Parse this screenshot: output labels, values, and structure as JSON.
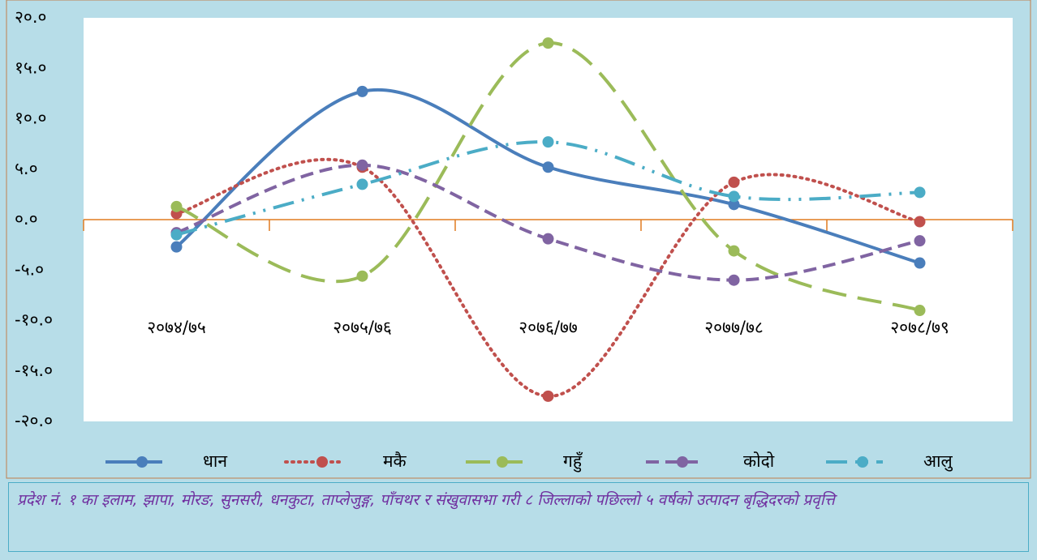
{
  "chart_data": {
    "type": "line",
    "categories": [
      "२०७४/७५",
      "२०७५/७६",
      "२०७६/७७",
      "२०७७/७८",
      "२०७८/७९"
    ],
    "series": [
      {
        "name": "धान",
        "color": "#4a7ebb",
        "line_style": "solid",
        "values": [
          -2.7,
          12.7,
          5.2,
          1.5,
          -4.3
        ]
      },
      {
        "name": "मकै",
        "color": "#c0504d",
        "line_style": "dotted",
        "values": [
          0.6,
          5.2,
          -17.5,
          3.7,
          -0.2
        ]
      },
      {
        "name": "गहुँ",
        "color": "#9bbb59",
        "line_style": "long-dash",
        "values": [
          1.3,
          -5.6,
          17.5,
          -3.1,
          -9.0
        ]
      },
      {
        "name": "कोदो",
        "color": "#8064a2",
        "line_style": "dash",
        "values": [
          -1.3,
          5.4,
          -1.9,
          -6.0,
          -2.1
        ]
      },
      {
        "name": "आलु",
        "color": "#4bacc6",
        "line_style": "dash-dot-dot",
        "values": [
          -1.5,
          3.5,
          7.7,
          2.3,
          2.7
        ]
      }
    ],
    "ylim": [
      -20,
      20
    ],
    "yticks": [
      {
        "value": -20,
        "label": "-२०.०"
      },
      {
        "value": -15,
        "label": "-१५.०"
      },
      {
        "value": -10,
        "label": "-१०.०"
      },
      {
        "value": -5,
        "label": "-५.०"
      },
      {
        "value": 0,
        "label": "०.०"
      },
      {
        "value": 5,
        "label": "५.०"
      },
      {
        "value": 10,
        "label": "१०.०"
      },
      {
        "value": 15,
        "label": "१५.०"
      },
      {
        "value": 20,
        "label": "२०.०"
      }
    ],
    "caption": "प्रदेश नं. १ का इलाम, झापा, मोरङ, सुनसरी, धनकुटा, ताप्लेजुङ्ग, पाँचथर र संखुवासभा गरी ८ जिल्लाको पछिल्लो ५ वर्षको उत्पादन बृद्धिदरको प्रवृत्ति"
  }
}
